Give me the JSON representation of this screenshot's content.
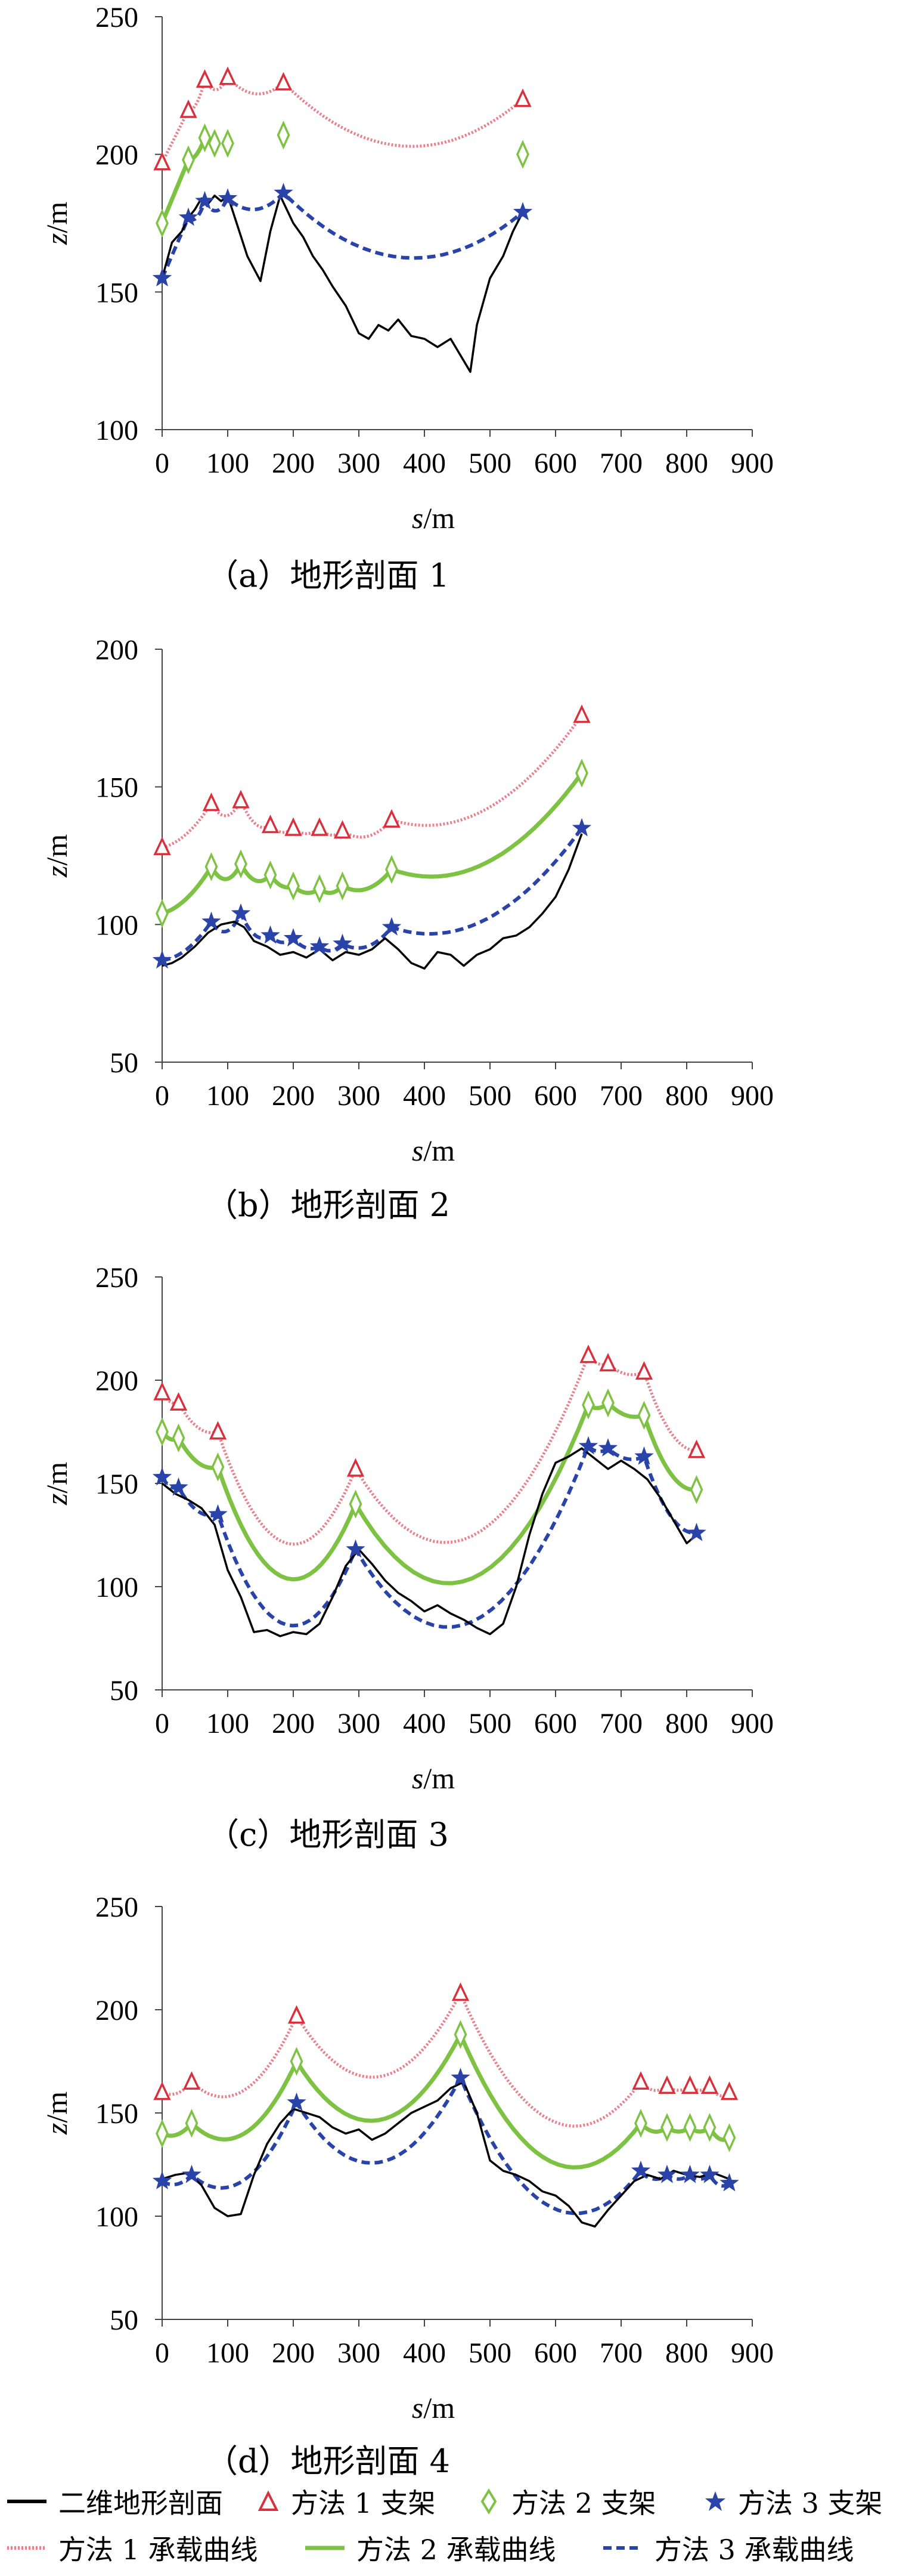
{
  "figure": {
    "legend": {
      "terrain": "二维地形剖面",
      "m1_support": "方法 1 支架",
      "m2_support": "方法 2 支架",
      "m3_support": "方法 3 支架",
      "m1_curve": "方法 1 承载曲线",
      "m2_curve": "方法 2 承载曲线",
      "m3_curve": "方法 3 承载曲线"
    },
    "colors": {
      "terrain": "#000000",
      "method1": "#e8808c",
      "method1_marker": "#d9303e",
      "method2": "#7dc242",
      "method3": "#2a43a8"
    }
  },
  "chart_data": [
    {
      "type": "line",
      "caption": "（a）地形剖面 1",
      "xlabel": "s/m",
      "ylabel": "z/m",
      "xlim": [
        0,
        900
      ],
      "ylim": [
        100,
        250
      ],
      "xticks": [
        0,
        100,
        200,
        300,
        400,
        500,
        600,
        700,
        800,
        900
      ],
      "yticks": [
        100,
        150,
        200,
        250
      ],
      "terrain": {
        "x": [
          0,
          15,
          30,
          40,
          50,
          60,
          70,
          80,
          90,
          100,
          115,
          130,
          150,
          165,
          180,
          190,
          200,
          215,
          230,
          245,
          260,
          280,
          300,
          315,
          330,
          345,
          360,
          380,
          400,
          420,
          440,
          460,
          470,
          480,
          500,
          520,
          535,
          550
        ],
        "y": [
          155,
          168,
          172,
          177,
          180,
          184,
          182,
          185,
          183,
          185,
          174,
          163,
          154,
          172,
          185,
          180,
          175,
          170,
          163,
          158,
          152,
          145,
          135,
          133,
          138,
          136,
          140,
          134,
          133,
          130,
          133,
          125,
          121,
          138,
          155,
          163,
          172,
          179
        ]
      },
      "series": [
        {
          "name": "方法 1 承载曲线",
          "supports_x": [
            0,
            40,
            65,
            100,
            185,
            550
          ],
          "supports_y": [
            197,
            216,
            227,
            228,
            226,
            220
          ],
          "sag": [
            0,
            3,
            4,
            5,
            20
          ]
        },
        {
          "name": "方法 2 承载曲线",
          "supports_x": [
            0,
            40,
            65
          ],
          "supports_y": [
            175,
            198,
            206
          ],
          "sag": [
            0,
            2
          ],
          "extra_markers_x": [
            80,
            100,
            185,
            550
          ],
          "extra_markers_y": [
            204,
            204,
            207,
            200
          ]
        },
        {
          "name": "方法 3 承载曲线",
          "supports_x": [
            0,
            40,
            65,
            100,
            185,
            550
          ],
          "supports_y": [
            155,
            177,
            183,
            184,
            186,
            179
          ],
          "sag": [
            0,
            3,
            4,
            5,
            20
          ]
        }
      ]
    },
    {
      "type": "line",
      "caption": "（b）地形剖面 2",
      "xlabel": "s/m",
      "ylabel": "z/m",
      "xlim": [
        0,
        900
      ],
      "ylim": [
        50,
        200
      ],
      "xticks": [
        0,
        100,
        200,
        300,
        400,
        500,
        600,
        700,
        800,
        900
      ],
      "yticks": [
        50,
        100,
        150,
        200
      ],
      "terrain": {
        "x": [
          0,
          15,
          30,
          50,
          70,
          90,
          110,
          125,
          140,
          160,
          180,
          200,
          220,
          240,
          260,
          280,
          300,
          320,
          340,
          360,
          380,
          400,
          420,
          440,
          460,
          480,
          500,
          520,
          540,
          560,
          580,
          600,
          620,
          640
        ],
        "y": [
          85,
          86,
          88,
          92,
          97,
          100,
          101,
          99,
          94,
          92,
          89,
          90,
          88,
          91,
          87,
          90,
          89,
          91,
          95,
          91,
          86,
          84,
          90,
          89,
          85,
          89,
          91,
          95,
          96,
          99,
          104,
          110,
          120,
          133
        ]
      },
      "series": [
        {
          "name": "方法 1 承载曲线",
          "supports_x": [
            0,
            75,
            120,
            165,
            200,
            240,
            275,
            350,
            640
          ],
          "supports_y": [
            128,
            144,
            145,
            136,
            135,
            135,
            134,
            138,
            176
          ],
          "sag": [
            3,
            5,
            4,
            2,
            2,
            2,
            4,
            15
          ]
        },
        {
          "name": "方法 2 承载曲线",
          "supports_x": [
            0,
            75,
            120,
            165,
            200,
            240,
            275,
            350,
            640
          ],
          "supports_y": [
            104,
            121,
            122,
            118,
            114,
            113,
            114,
            120,
            155
          ],
          "sag": [
            3,
            5,
            4,
            2,
            2,
            2,
            4,
            15
          ]
        },
        {
          "name": "方法 3 承载曲线",
          "supports_x": [
            0,
            75,
            120,
            165,
            200,
            240,
            275,
            350,
            640
          ],
          "supports_y": [
            87,
            101,
            104,
            96,
            95,
            92,
            93,
            99,
            135
          ],
          "sag": [
            3,
            5,
            4,
            2,
            2,
            2,
            4,
            15
          ]
        }
      ]
    },
    {
      "type": "line",
      "caption": "（c）地形剖面 3",
      "xlabel": "s/m",
      "ylabel": "z/m",
      "xlim": [
        0,
        900
      ],
      "ylim": [
        50,
        250
      ],
      "xticks": [
        0,
        100,
        200,
        300,
        400,
        500,
        600,
        700,
        800,
        900
      ],
      "yticks": [
        50,
        100,
        150,
        200,
        250
      ],
      "terrain": {
        "x": [
          0,
          20,
          40,
          60,
          80,
          100,
          120,
          140,
          160,
          180,
          200,
          220,
          240,
          260,
          280,
          300,
          320,
          340,
          360,
          380,
          400,
          420,
          440,
          460,
          480,
          500,
          520,
          540,
          560,
          580,
          600,
          620,
          640,
          660,
          680,
          700,
          720,
          740,
          760,
          780,
          800,
          815
        ],
        "y": [
          150,
          145,
          142,
          138,
          130,
          108,
          95,
          78,
          79,
          76,
          78,
          77,
          82,
          95,
          110,
          118,
          111,
          103,
          97,
          93,
          88,
          91,
          87,
          84,
          80,
          77,
          82,
          100,
          125,
          145,
          160,
          163,
          167,
          162,
          157,
          161,
          157,
          152,
          143,
          132,
          121,
          125
        ]
      },
      "series": [
        {
          "name": "方法 1 承载曲线",
          "supports_x": [
            0,
            25,
            85,
            295,
            650,
            680,
            735,
            815
          ],
          "supports_y": [
            194,
            189,
            175,
            157,
            212,
            208,
            204,
            166
          ],
          "sag": [
            2,
            5,
            45,
            60,
            2,
            3,
            10
          ]
        },
        {
          "name": "方法 2 承载曲线",
          "supports_x": [
            0,
            25,
            85,
            295,
            650,
            680,
            735,
            815
          ],
          "supports_y": [
            175,
            172,
            158,
            140,
            188,
            189,
            183,
            147
          ],
          "sag": [
            2,
            5,
            45,
            60,
            2,
            3,
            10
          ]
        },
        {
          "name": "方法 3 承载曲线",
          "supports_x": [
            0,
            25,
            85,
            295,
            650,
            680,
            735,
            815
          ],
          "supports_y": [
            153,
            148,
            135,
            118,
            168,
            167,
            163,
            126
          ],
          "sag": [
            2,
            5,
            45,
            60,
            2,
            3,
            10
          ]
        }
      ]
    },
    {
      "type": "line",
      "caption": "（d）地形剖面 4",
      "xlabel": "s/m",
      "ylabel": "z/m",
      "xlim": [
        0,
        900
      ],
      "ylim": [
        50,
        250
      ],
      "xticks": [
        0,
        100,
        200,
        300,
        400,
        500,
        600,
        700,
        800,
        900
      ],
      "yticks": [
        50,
        100,
        150,
        200,
        250
      ],
      "terrain": {
        "x": [
          0,
          20,
          40,
          60,
          80,
          100,
          120,
          140,
          160,
          180,
          200,
          220,
          240,
          260,
          280,
          300,
          320,
          340,
          360,
          380,
          400,
          420,
          440,
          460,
          480,
          500,
          520,
          540,
          560,
          580,
          600,
          620,
          640,
          660,
          680,
          700,
          720,
          740,
          760,
          780,
          800,
          820,
          840,
          865
        ],
        "y": [
          118,
          120,
          121,
          115,
          104,
          100,
          101,
          120,
          135,
          145,
          152,
          150,
          148,
          143,
          140,
          142,
          137,
          140,
          145,
          150,
          153,
          156,
          162,
          165,
          150,
          127,
          122,
          120,
          117,
          112,
          110,
          105,
          97,
          95,
          103,
          110,
          117,
          120,
          118,
          122,
          120,
          119,
          121,
          118
        ]
      },
      "series": [
        {
          "name": "方法 1 承载曲线",
          "supports_x": [
            0,
            45,
            205,
            455,
            730,
            770,
            805,
            835,
            865
          ],
          "supports_y": [
            160,
            165,
            197,
            208,
            165,
            163,
            163,
            163,
            160
          ],
          "sag": [
            3,
            20,
            35,
            40,
            3,
            2,
            2,
            3
          ]
        },
        {
          "name": "方法 2 承载曲线",
          "supports_x": [
            0,
            45,
            205,
            455,
            730,
            770,
            805,
            835,
            865
          ],
          "supports_y": [
            140,
            145,
            175,
            188,
            145,
            143,
            143,
            143,
            138
          ],
          "sag": [
            3,
            20,
            35,
            40,
            3,
            2,
            2,
            3
          ]
        },
        {
          "name": "方法 3 承载曲线",
          "supports_x": [
            0,
            45,
            205,
            455,
            730,
            770,
            805,
            835,
            865
          ],
          "supports_y": [
            117,
            120,
            155,
            167,
            122,
            120,
            120,
            120,
            116
          ],
          "sag": [
            3,
            20,
            35,
            40,
            3,
            2,
            2,
            3
          ]
        }
      ]
    }
  ]
}
